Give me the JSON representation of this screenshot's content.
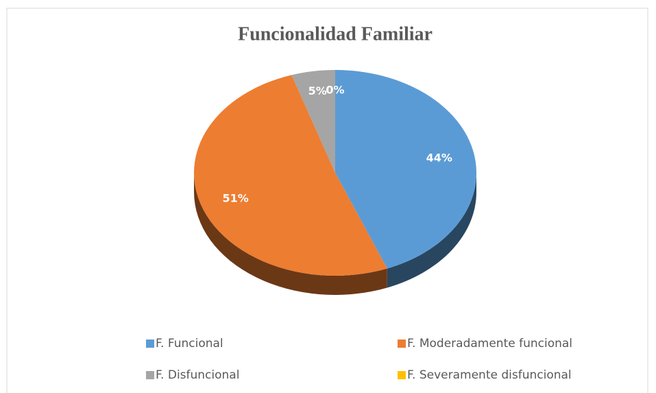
{
  "chart_data": {
    "type": "pie",
    "title": "Funcionalidad Familiar",
    "categories": [
      "F. Funcional",
      "F. Moderadamente funcional",
      "F. Disfuncional",
      "F. Severamente disfuncional"
    ],
    "values": [
      44,
      51,
      5,
      0
    ],
    "value_labels": [
      "44%",
      "51%",
      "5%",
      "0%"
    ],
    "colors": [
      "#5b9bd5",
      "#ed7d31",
      "#a5a5a5",
      "#ffc000"
    ]
  }
}
